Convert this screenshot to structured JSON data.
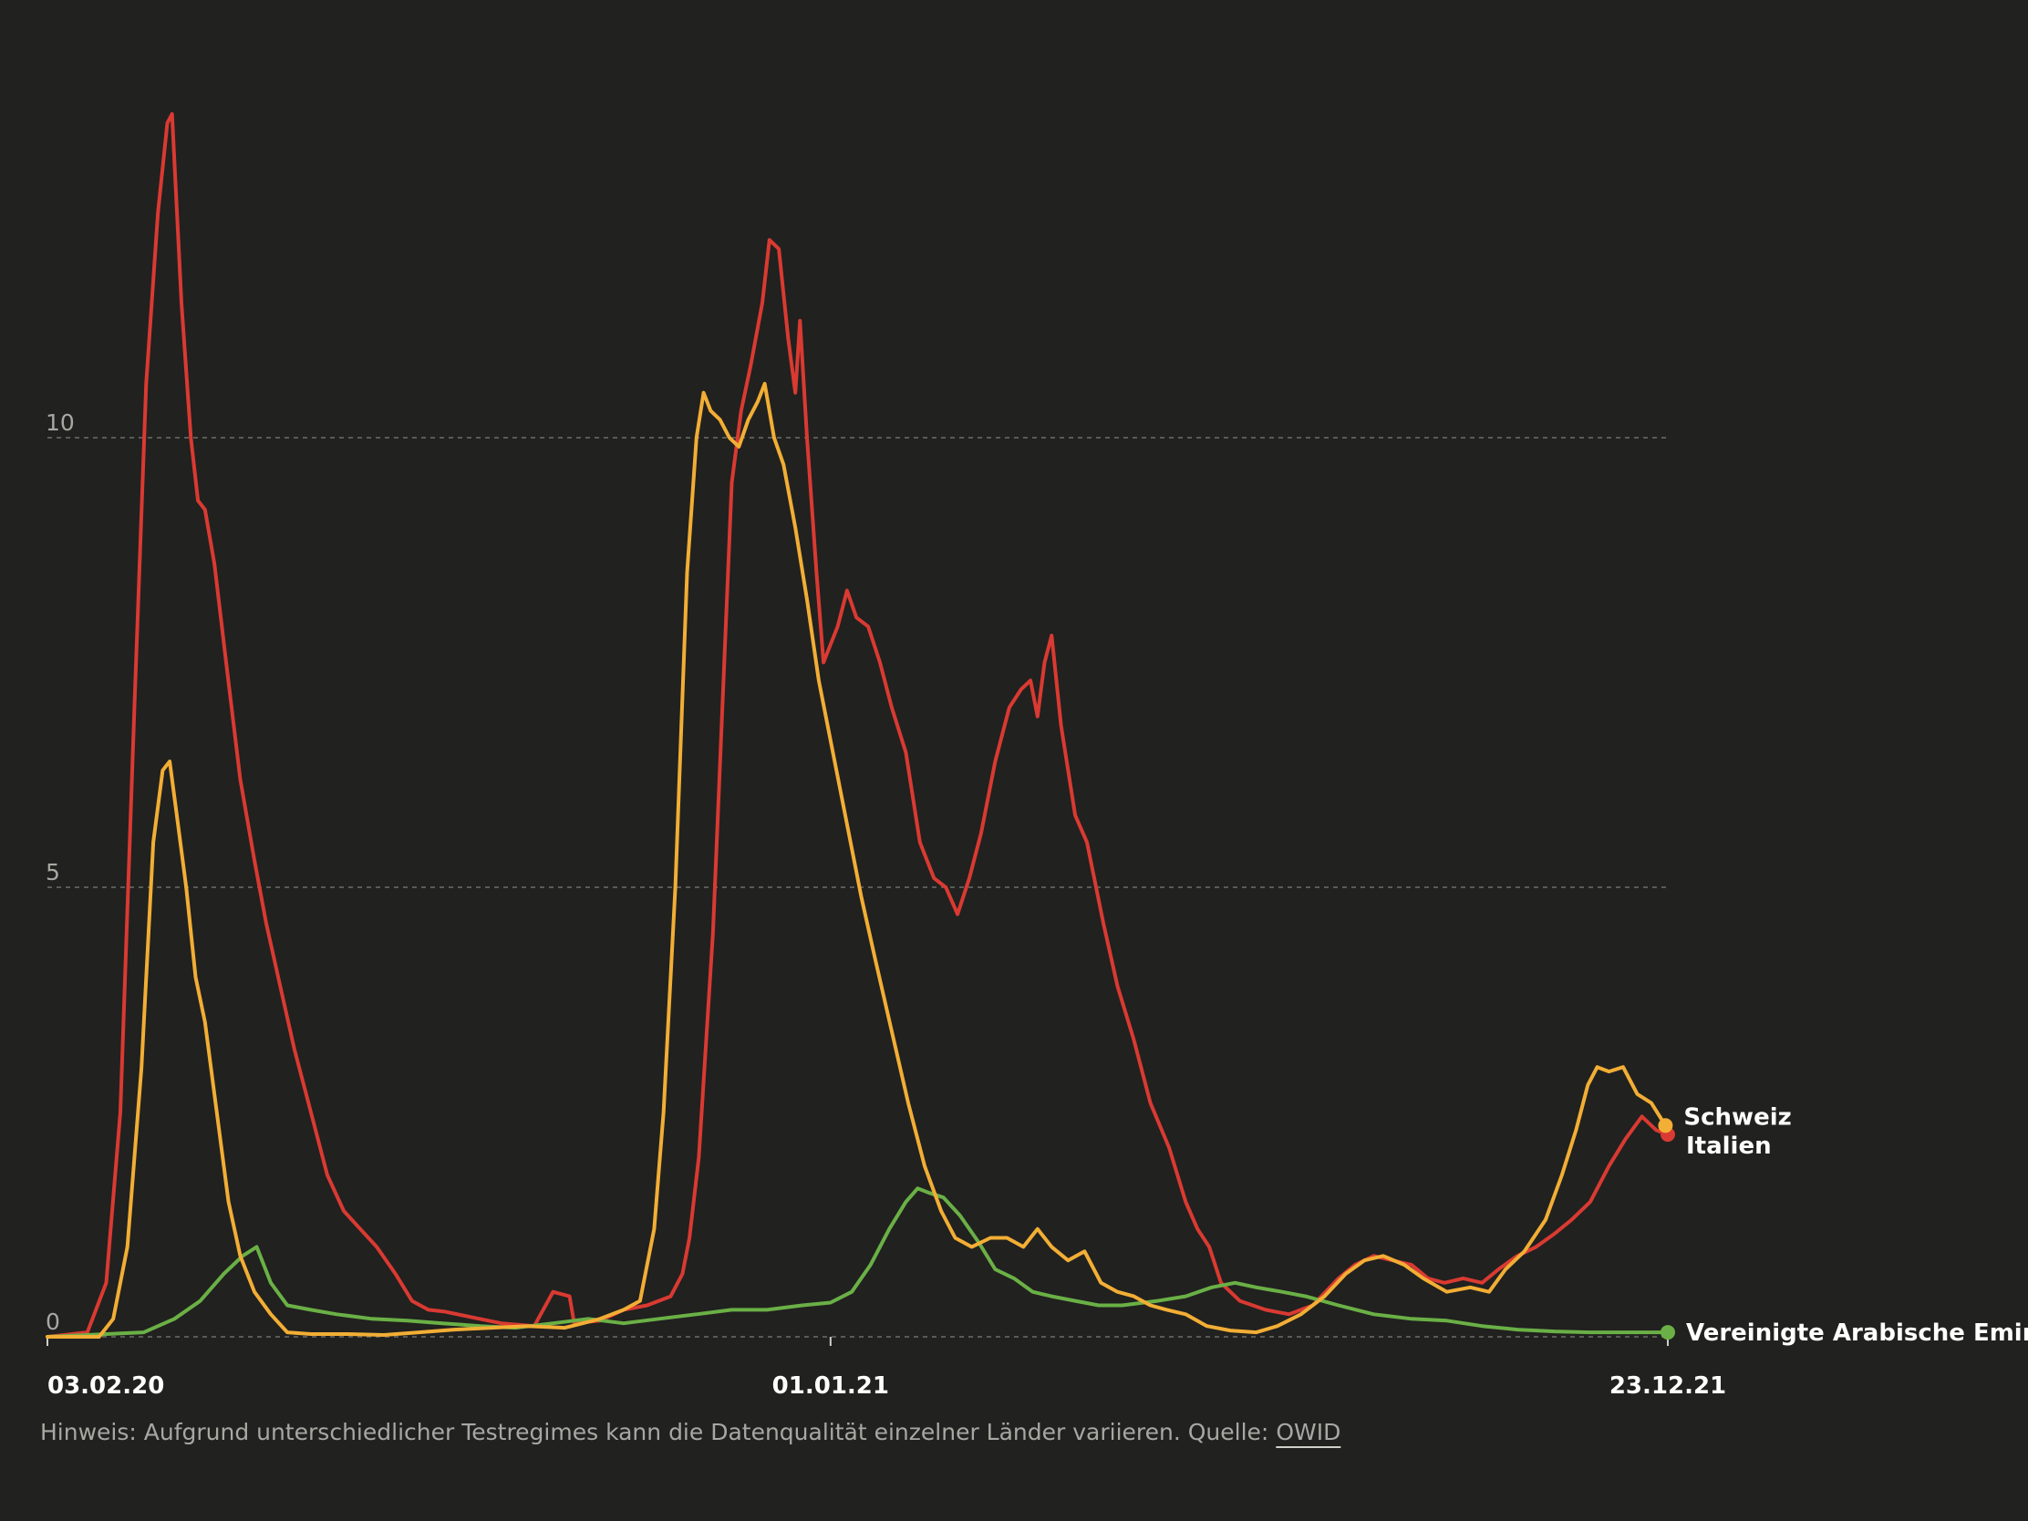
{
  "chart_data": {
    "type": "line",
    "title": "",
    "xlabel": "",
    "ylabel": "",
    "ylim": [
      0,
      14
    ],
    "y_ticks": [
      0,
      5,
      10
    ],
    "x_ticks": [
      "03.02.20",
      "01.01.21",
      "23.12.21"
    ],
    "x_range": [
      "2020-02-03",
      "2021-12-23"
    ],
    "grid": "horizontal dashed",
    "legend": "end-of-line labels",
    "series": [
      {
        "name": "Italien",
        "color": "#d93a32",
        "points": [
          [
            "2020-02-03",
            0
          ],
          [
            "2020-02-20",
            0.05
          ],
          [
            "2020-02-28",
            0.6
          ],
          [
            "2020-03-05",
            2.5
          ],
          [
            "2020-03-11",
            7.0
          ],
          [
            "2020-03-16",
            10.6
          ],
          [
            "2020-03-21",
            12.5
          ],
          [
            "2020-03-25",
            13.5
          ],
          [
            "2020-03-27",
            13.6
          ],
          [
            "2020-03-31",
            11.5
          ],
          [
            "2020-04-04",
            10.0
          ],
          [
            "2020-04-07",
            9.3
          ],
          [
            "2020-04-10",
            9.2
          ],
          [
            "2020-04-14",
            8.6
          ],
          [
            "2020-04-19",
            7.5
          ],
          [
            "2020-04-25",
            6.2
          ],
          [
            "2020-05-01",
            5.3
          ],
          [
            "2020-05-06",
            4.6
          ],
          [
            "2020-05-12",
            3.9
          ],
          [
            "2020-05-18",
            3.2
          ],
          [
            "2020-05-25",
            2.5
          ],
          [
            "2020-06-01",
            1.8
          ],
          [
            "2020-06-08",
            1.4
          ],
          [
            "2020-06-15",
            1.2
          ],
          [
            "2020-06-22",
            1.0
          ],
          [
            "2020-06-30",
            0.7
          ],
          [
            "2020-07-07",
            0.4
          ],
          [
            "2020-07-14",
            0.3
          ],
          [
            "2020-07-21",
            0.28
          ],
          [
            "2020-08-01",
            0.22
          ],
          [
            "2020-08-14",
            0.15
          ],
          [
            "2020-08-28",
            0.12
          ],
          [
            "2020-09-05",
            0.5
          ],
          [
            "2020-09-12",
            0.45
          ],
          [
            "2020-09-14",
            0.15
          ],
          [
            "2020-09-25",
            0.18
          ],
          [
            "2020-10-05",
            0.3
          ],
          [
            "2020-10-15",
            0.35
          ],
          [
            "2020-10-25",
            0.45
          ],
          [
            "2020-10-30",
            0.7
          ],
          [
            "2020-11-02",
            1.1
          ],
          [
            "2020-11-06",
            2.0
          ],
          [
            "2020-11-12",
            4.5
          ],
          [
            "2020-11-16",
            7.0
          ],
          [
            "2020-11-20",
            9.5
          ],
          [
            "2020-11-24",
            10.3
          ],
          [
            "2020-11-28",
            10.8
          ],
          [
            "2020-12-03",
            11.5
          ],
          [
            "2020-12-06",
            12.2
          ],
          [
            "2020-12-10",
            12.1
          ],
          [
            "2020-12-14",
            11.1
          ],
          [
            "2020-12-17",
            10.5
          ],
          [
            "2020-12-19",
            11.3
          ],
          [
            "2020-12-22",
            10.0
          ],
          [
            "2020-12-26",
            8.5
          ],
          [
            "2020-12-29",
            7.5
          ],
          [
            "2021-01-01",
            7.7
          ],
          [
            "2021-01-04",
            7.9
          ],
          [
            "2021-01-08",
            8.3
          ],
          [
            "2021-01-12",
            8.0
          ],
          [
            "2021-01-17",
            7.9
          ],
          [
            "2021-01-22",
            7.5
          ],
          [
            "2021-01-27",
            7.0
          ],
          [
            "2021-02-02",
            6.5
          ],
          [
            "2021-02-08",
            5.5
          ],
          [
            "2021-02-14",
            5.1
          ],
          [
            "2021-02-19",
            5.0
          ],
          [
            "2021-02-24",
            4.7
          ],
          [
            "2021-03-01",
            5.1
          ],
          [
            "2021-03-06",
            5.6
          ],
          [
            "2021-03-12",
            6.4
          ],
          [
            "2021-03-18",
            7.0
          ],
          [
            "2021-03-23",
            7.2
          ],
          [
            "2021-03-27",
            7.3
          ],
          [
            "2021-03-30",
            6.9
          ],
          [
            "2021-04-02",
            7.5
          ],
          [
            "2021-04-05",
            7.8
          ],
          [
            "2021-04-09",
            6.8
          ],
          [
            "2021-04-15",
            5.8
          ],
          [
            "2021-04-20",
            5.5
          ],
          [
            "2021-04-27",
            4.6
          ],
          [
            "2021-05-03",
            3.9
          ],
          [
            "2021-05-10",
            3.3
          ],
          [
            "2021-05-17",
            2.6
          ],
          [
            "2021-05-25",
            2.1
          ],
          [
            "2021-06-01",
            1.5
          ],
          [
            "2021-06-06",
            1.2
          ],
          [
            "2021-06-11",
            1.0
          ],
          [
            "2021-06-16",
            0.6
          ],
          [
            "2021-06-24",
            0.4
          ],
          [
            "2021-07-05",
            0.3
          ],
          [
            "2021-07-15",
            0.25
          ],
          [
            "2021-07-25",
            0.35
          ],
          [
            "2021-08-05",
            0.65
          ],
          [
            "2021-08-12",
            0.8
          ],
          [
            "2021-08-20",
            0.9
          ],
          [
            "2021-08-28",
            0.85
          ],
          [
            "2021-09-05",
            0.8
          ],
          [
            "2021-09-12",
            0.65
          ],
          [
            "2021-09-19",
            0.6
          ],
          [
            "2021-09-27",
            0.65
          ],
          [
            "2021-10-05",
            0.6
          ],
          [
            "2021-10-12",
            0.75
          ],
          [
            "2021-10-20",
            0.9
          ],
          [
            "2021-10-28",
            1.0
          ],
          [
            "2021-11-05",
            1.15
          ],
          [
            "2021-11-12",
            1.3
          ],
          [
            "2021-11-20",
            1.5
          ],
          [
            "2021-11-28",
            1.9
          ],
          [
            "2021-12-05",
            2.2
          ],
          [
            "2021-12-12",
            2.45
          ],
          [
            "2021-12-18",
            2.3
          ],
          [
            "2021-12-23",
            2.25
          ]
        ]
      },
      {
        "name": "Schweiz",
        "color": "#f2ae35",
        "points": [
          [
            "2020-02-03",
            0
          ],
          [
            "2020-02-25",
            0
          ],
          [
            "2020-03-02",
            0.2
          ],
          [
            "2020-03-08",
            1.0
          ],
          [
            "2020-03-14",
            3.0
          ],
          [
            "2020-03-19",
            5.5
          ],
          [
            "2020-03-23",
            6.3
          ],
          [
            "2020-03-26",
            6.4
          ],
          [
            "2020-03-29",
            5.8
          ],
          [
            "2020-04-02",
            5.0
          ],
          [
            "2020-04-06",
            4.0
          ],
          [
            "2020-04-10",
            3.5
          ],
          [
            "2020-04-15",
            2.5
          ],
          [
            "2020-04-20",
            1.5
          ],
          [
            "2020-04-25",
            0.9
          ],
          [
            "2020-05-01",
            0.5
          ],
          [
            "2020-05-08",
            0.25
          ],
          [
            "2020-05-15",
            0.05
          ],
          [
            "2020-05-25",
            0.03
          ],
          [
            "2020-06-10",
            0.03
          ],
          [
            "2020-06-25",
            0.02
          ],
          [
            "2020-07-10",
            0.05
          ],
          [
            "2020-07-25",
            0.08
          ],
          [
            "2020-08-10",
            0.1
          ],
          [
            "2020-08-25",
            0.12
          ],
          [
            "2020-09-10",
            0.1
          ],
          [
            "2020-09-25",
            0.2
          ],
          [
            "2020-10-05",
            0.3
          ],
          [
            "2020-10-12",
            0.4
          ],
          [
            "2020-10-18",
            1.2
          ],
          [
            "2020-10-22",
            2.5
          ],
          [
            "2020-10-27",
            5.0
          ],
          [
            "2020-11-01",
            8.5
          ],
          [
            "2020-11-05",
            10.0
          ],
          [
            "2020-11-08",
            10.5
          ],
          [
            "2020-11-11",
            10.3
          ],
          [
            "2020-11-15",
            10.2
          ],
          [
            "2020-11-19",
            10.0
          ],
          [
            "2020-11-23",
            9.9
          ],
          [
            "2020-11-27",
            10.2
          ],
          [
            "2020-12-01",
            10.4
          ],
          [
            "2020-12-04",
            10.6
          ],
          [
            "2020-12-08",
            10.0
          ],
          [
            "2020-12-12",
            9.7
          ],
          [
            "2020-12-17",
            9.0
          ],
          [
            "2020-12-22",
            8.2
          ],
          [
            "2020-12-27",
            7.3
          ],
          [
            "2021-01-02",
            6.5
          ],
          [
            "2021-01-08",
            5.7
          ],
          [
            "2021-01-14",
            4.9
          ],
          [
            "2021-01-20",
            4.2
          ],
          [
            "2021-01-27",
            3.4
          ],
          [
            "2021-02-03",
            2.6
          ],
          [
            "2021-02-10",
            1.9
          ],
          [
            "2021-02-17",
            1.4
          ],
          [
            "2021-02-23",
            1.1
          ],
          [
            "2021-03-02",
            1.0
          ],
          [
            "2021-03-10",
            1.1
          ],
          [
            "2021-03-17",
            1.1
          ],
          [
            "2021-03-24",
            1.0
          ],
          [
            "2021-03-30",
            1.2
          ],
          [
            "2021-04-05",
            1.0
          ],
          [
            "2021-04-12",
            0.85
          ],
          [
            "2021-04-19",
            0.95
          ],
          [
            "2021-04-26",
            0.6
          ],
          [
            "2021-05-03",
            0.5
          ],
          [
            "2021-05-10",
            0.45
          ],
          [
            "2021-05-17",
            0.35
          ],
          [
            "2021-05-24",
            0.3
          ],
          [
            "2021-06-01",
            0.25
          ],
          [
            "2021-06-10",
            0.12
          ],
          [
            "2021-06-20",
            0.07
          ],
          [
            "2021-07-01",
            0.05
          ],
          [
            "2021-07-10",
            0.12
          ],
          [
            "2021-07-20",
            0.25
          ],
          [
            "2021-07-30",
            0.45
          ],
          [
            "2021-08-08",
            0.7
          ],
          [
            "2021-08-16",
            0.85
          ],
          [
            "2021-08-24",
            0.9
          ],
          [
            "2021-09-02",
            0.8
          ],
          [
            "2021-09-10",
            0.65
          ],
          [
            "2021-09-20",
            0.5
          ],
          [
            "2021-09-30",
            0.55
          ],
          [
            "2021-10-08",
            0.5
          ],
          [
            "2021-10-15",
            0.75
          ],
          [
            "2021-10-23",
            0.95
          ],
          [
            "2021-11-01",
            1.3
          ],
          [
            "2021-11-08",
            1.8
          ],
          [
            "2021-11-14",
            2.3
          ],
          [
            "2021-11-19",
            2.8
          ],
          [
            "2021-11-23",
            3.0
          ],
          [
            "2021-11-28",
            2.95
          ],
          [
            "2021-12-04",
            3.0
          ],
          [
            "2021-12-10",
            2.7
          ],
          [
            "2021-12-16",
            2.6
          ],
          [
            "2021-12-22",
            2.35
          ]
        ]
      },
      {
        "name": "Vereinigte Arabische Emirate",
        "color": "#6ab046",
        "points": [
          [
            "2020-02-03",
            0
          ],
          [
            "2020-03-15",
            0.05
          ],
          [
            "2020-03-28",
            0.2
          ],
          [
            "2020-04-08",
            0.4
          ],
          [
            "2020-04-18",
            0.7
          ],
          [
            "2020-04-26",
            0.9
          ],
          [
            "2020-05-02",
            1.0
          ],
          [
            "2020-05-08",
            0.6
          ],
          [
            "2020-05-15",
            0.35
          ],
          [
            "2020-05-25",
            0.3
          ],
          [
            "2020-06-05",
            0.25
          ],
          [
            "2020-06-20",
            0.2
          ],
          [
            "2020-07-05",
            0.18
          ],
          [
            "2020-07-20",
            0.15
          ],
          [
            "2020-08-05",
            0.12
          ],
          [
            "2020-08-20",
            0.1
          ],
          [
            "2020-09-05",
            0.15
          ],
          [
            "2020-09-20",
            0.2
          ],
          [
            "2020-10-05",
            0.15
          ],
          [
            "2020-10-20",
            0.2
          ],
          [
            "2020-11-05",
            0.25
          ],
          [
            "2020-11-20",
            0.3
          ],
          [
            "2020-12-05",
            0.3
          ],
          [
            "2020-12-20",
            0.35
          ],
          [
            "2021-01-01",
            0.38
          ],
          [
            "2021-01-10",
            0.5
          ],
          [
            "2021-01-18",
            0.8
          ],
          [
            "2021-01-26",
            1.2
          ],
          [
            "2021-02-02",
            1.5
          ],
          [
            "2021-02-07",
            1.65
          ],
          [
            "2021-02-12",
            1.6
          ],
          [
            "2021-02-18",
            1.55
          ],
          [
            "2021-02-25",
            1.35
          ],
          [
            "2021-03-05",
            1.05
          ],
          [
            "2021-03-12",
            0.75
          ],
          [
            "2021-03-20",
            0.65
          ],
          [
            "2021-03-28",
            0.5
          ],
          [
            "2021-04-05",
            0.45
          ],
          [
            "2021-04-15",
            0.4
          ],
          [
            "2021-04-25",
            0.35
          ],
          [
            "2021-05-05",
            0.35
          ],
          [
            "2021-05-20",
            0.4
          ],
          [
            "2021-06-01",
            0.45
          ],
          [
            "2021-06-12",
            0.55
          ],
          [
            "2021-06-22",
            0.6
          ],
          [
            "2021-07-01",
            0.55
          ],
          [
            "2021-07-12",
            0.5
          ],
          [
            "2021-07-22",
            0.45
          ],
          [
            "2021-08-05",
            0.35
          ],
          [
            "2021-08-20",
            0.25
          ],
          [
            "2021-09-05",
            0.2
          ],
          [
            "2021-09-20",
            0.18
          ],
          [
            "2021-10-05",
            0.12
          ],
          [
            "2021-10-20",
            0.08
          ],
          [
            "2021-11-05",
            0.06
          ],
          [
            "2021-11-20",
            0.05
          ],
          [
            "2021-12-05",
            0.05
          ],
          [
            "2021-12-23",
            0.05
          ]
        ]
      }
    ]
  },
  "footnote": {
    "text": "Hinweis: Aufgrund unterschiedlicher Testregimes kann die Datenqualität einzelner Länder variieren. Quelle: ",
    "source": "OWID"
  }
}
